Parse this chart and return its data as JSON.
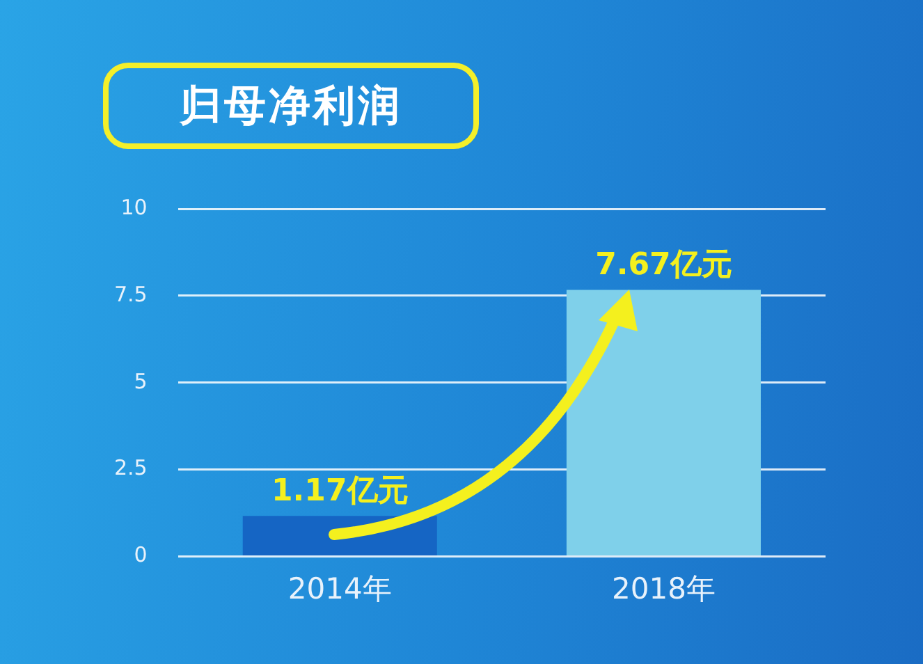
{
  "chart_data": {
    "type": "bar",
    "title": "归母净利润",
    "categories": [
      "2014年",
      "2018年"
    ],
    "values": [
      1.17,
      7.67
    ],
    "colors": [
      "#1565c4",
      "#7fd0ea"
    ],
    "value_labels": [
      "1.17亿元",
      "7.67亿元"
    ],
    "ylim": [
      0,
      10
    ],
    "yticks": [
      0,
      2.5,
      5,
      7.5,
      10
    ],
    "grid": "y",
    "legend": false
  }
}
